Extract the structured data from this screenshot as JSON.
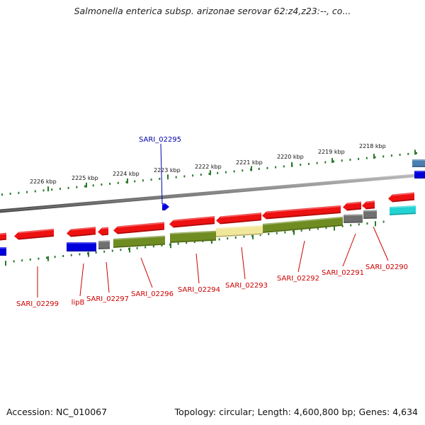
{
  "title": "Salmonella enterica subsp. arizonae serovar 62:z4,z23:--, co...",
  "footer": {
    "accession": "Accession: NC_010067",
    "summary": "Topology: circular; Length: 4,600,800 bp; Genes: 4,634"
  },
  "colors": {
    "cds_red": "#ee1111",
    "blue": "#0000dd",
    "gray": "#707070",
    "olive": "#6f8c22",
    "pale_yellow": "#f1e79a",
    "cyan": "#22d3d3",
    "steel_blue": "#4a7fb0",
    "tick_green": "#2a7a2a",
    "label_red": "#cc0000",
    "label_blue": "#0000aa"
  },
  "ruler_labels": [
    "2226 kbp",
    "2225 kbp",
    "2224 kbp",
    "2223 kbp",
    "2222 kbp",
    "2221 kbp",
    "2220 kbp",
    "2219 kbp",
    "2218 kbp"
  ],
  "gene_labels_red": [
    "SARI_02299",
    "lipB",
    "SARI_02297",
    "SARI_02296",
    "SARI_02294",
    "SARI_02293",
    "SARI_02292",
    "SARI_02291",
    "SARI_02290"
  ],
  "gene_label_blue": "SARI_02295"
}
